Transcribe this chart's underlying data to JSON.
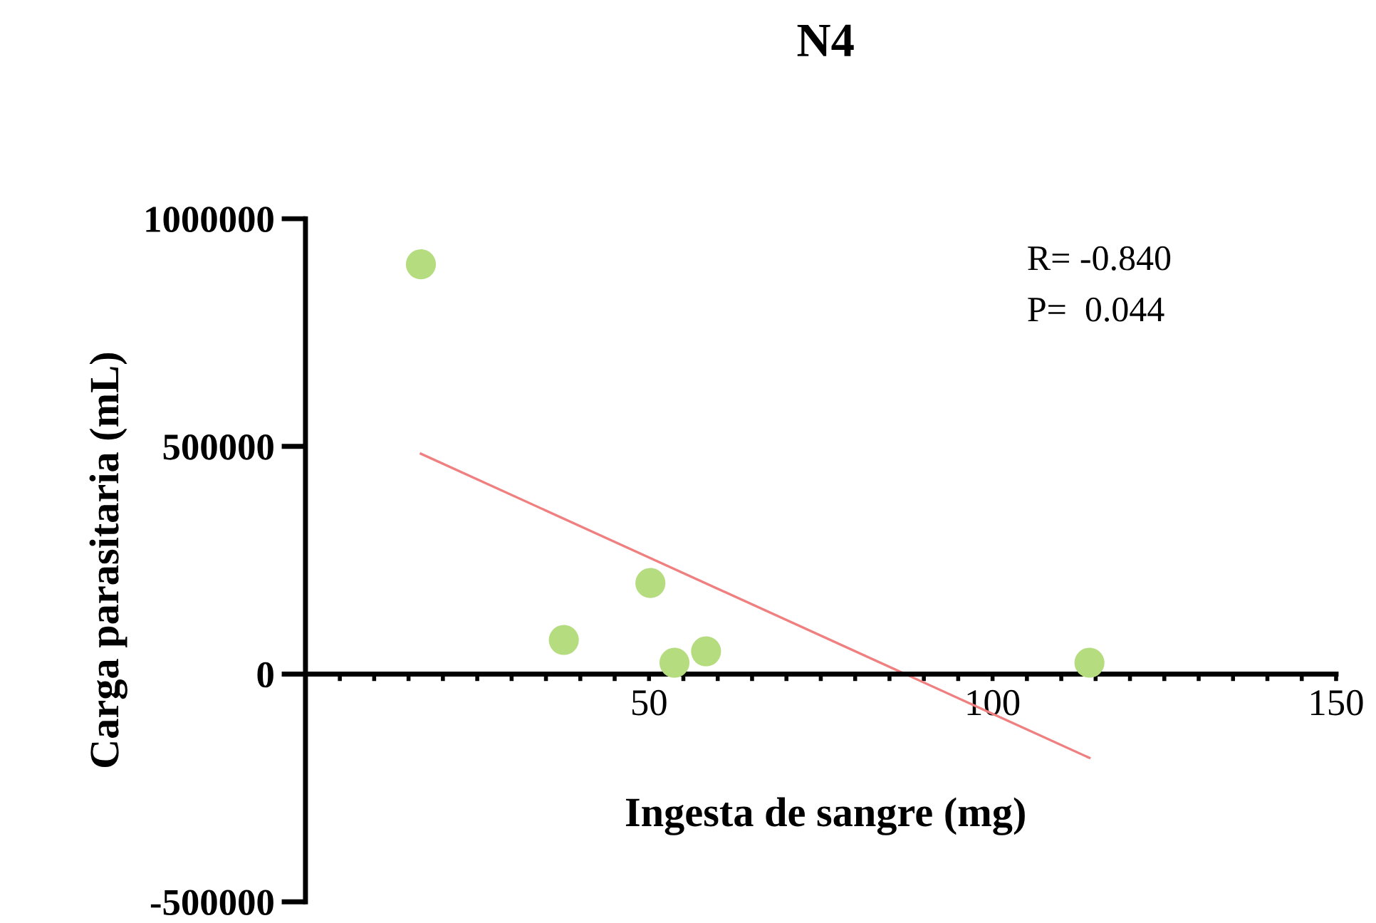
{
  "chart_data": {
    "type": "scatter",
    "title": "N4",
    "xlabel": "Ingesta de sangre (mg)",
    "ylabel": "Carga parasitaria (mL)",
    "annotations": [
      "R= -0.840",
      "P=  0.044"
    ],
    "x": [
      16.8,
      37.6,
      50.2,
      53.7,
      58.3,
      114.1
    ],
    "series": [
      {
        "color": "#b5dc7f",
        "marker": "circle",
        "values": [
          900000,
          75000,
          200000,
          25000,
          50000,
          25000
        ]
      },
      {
        "type": "line",
        "marker": "none",
        "color": "#f08080",
        "x": [
          16.8,
          114.1
        ],
        "values": [
          484000,
          -184000
        ]
      }
    ],
    "xlim": [
      0,
      150
    ],
    "ylim": [
      -500000,
      1000000
    ],
    "xticks": [
      {
        "value": 5,
        "label": null
      },
      {
        "value": 10,
        "label": null
      },
      {
        "value": 15,
        "label": null
      },
      {
        "value": 20,
        "label": null
      },
      {
        "value": 25,
        "label": null
      },
      {
        "value": 30,
        "label": null
      },
      {
        "value": 35,
        "label": null
      },
      {
        "value": 40,
        "label": null
      },
      {
        "value": 45,
        "label": null
      },
      50,
      {
        "value": 55,
        "label": null
      },
      {
        "value": 60,
        "label": null
      },
      {
        "value": 65,
        "label": null
      },
      {
        "value": 70,
        "label": null
      },
      {
        "value": 75,
        "label": null
      },
      {
        "value": 80,
        "label": null
      },
      {
        "value": 85,
        "label": null
      },
      {
        "value": 90,
        "label": null
      },
      {
        "value": 95,
        "label": null
      },
      100,
      {
        "value": 105,
        "label": null
      },
      {
        "value": 110,
        "label": null
      },
      {
        "value": 115,
        "label": null
      },
      {
        "value": 120,
        "label": null
      },
      {
        "value": 125,
        "label": null
      },
      {
        "value": 130,
        "label": null
      },
      {
        "value": 135,
        "label": null
      },
      {
        "value": 140,
        "label": null
      },
      {
        "value": 145,
        "label": null
      },
      150
    ],
    "yticks": [
      -500000,
      0,
      500000,
      1000000
    ],
    "grid": false,
    "legend": false
  }
}
